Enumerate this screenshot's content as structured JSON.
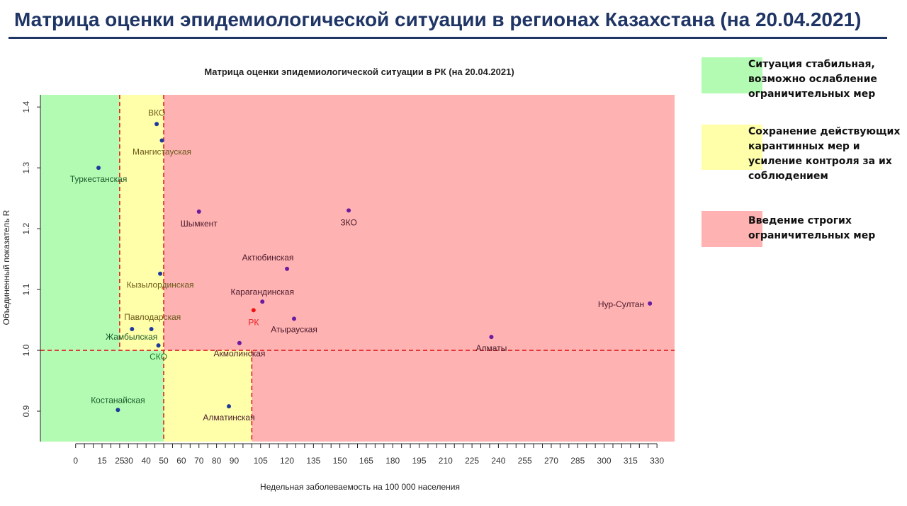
{
  "header": {
    "title": "Матрица оценки эпидемиологической ситуации в регионах Казахстана (на 20.04.2021)"
  },
  "legend": [
    {
      "text": "Ситуация стабильная, возможно ослабление ограничительных мер",
      "color": "#b3fbb3"
    },
    {
      "text": "Сохранение действующих карантинных мер и усиление контроля за их соблюдением",
      "color": "#ffffaa"
    },
    {
      "text": "Введение строгих ограничительных мер",
      "color": "#ffb2b2"
    }
  ],
  "chart_data": {
    "type": "scatter",
    "title": "Матрица оценки эпидемиологической ситуации в РК (на 20.04.2021)",
    "xlabel": "Недельная заболеваемость на 100 000 населения",
    "ylabel": "Объединенный показатель R",
    "xlim": [
      -20,
      340
    ],
    "ylim": [
      0.85,
      1.42
    ],
    "xticks": [
      0,
      15,
      25,
      30,
      40,
      50,
      60,
      70,
      80,
      90,
      105,
      120,
      135,
      150,
      165,
      180,
      195,
      210,
      225,
      240,
      255,
      270,
      285,
      300,
      315,
      330
    ],
    "yticks": [
      0.9,
      1.0,
      1.1,
      1.2,
      1.3,
      1.4
    ],
    "zones": [
      {
        "x": [
          -20,
          50
        ],
        "y": [
          1.0,
          1.42
        ],
        "color": "#b3fbb3"
      },
      {
        "x": [
          -20,
          50
        ],
        "y": [
          0.85,
          1.0
        ],
        "color": "#b3fbb3"
      },
      {
        "x": [
          25,
          50
        ],
        "y": [
          1.0,
          1.42
        ],
        "color": "#ffffaa"
      },
      {
        "x": [
          50,
          100
        ],
        "y": [
          0.85,
          1.0
        ],
        "color": "#ffffaa"
      },
      {
        "x": [
          50,
          340
        ],
        "y": [
          1.0,
          1.42
        ],
        "color": "#ffb2b2"
      },
      {
        "x": [
          100,
          340
        ],
        "y": [
          0.85,
          1.0
        ],
        "color": "#ffb2b2"
      }
    ],
    "thresholds": {
      "x": [
        25,
        50,
        100
      ],
      "y": 1.0,
      "color": "#dd2222"
    },
    "points": [
      {
        "label": "ВКО",
        "x": 46,
        "y": 1.372,
        "color": "#1f3a9b"
      },
      {
        "label": "Мангистауская",
        "x": 49,
        "y": 1.345,
        "color": "#1f3a9b"
      },
      {
        "label": "Туркестанская",
        "x": 13,
        "y": 1.3,
        "color": "#1f3a9b"
      },
      {
        "label": "Шымкент",
        "x": 70,
        "y": 1.228,
        "color": "#6a1ba0"
      },
      {
        "label": "ЗКО",
        "x": 155,
        "y": 1.23,
        "color": "#6a1ba0"
      },
      {
        "label": "Актюбинская",
        "x": 120,
        "y": 1.134,
        "color": "#6a1ba0"
      },
      {
        "label": "Кызылординская",
        "x": 48,
        "y": 1.126,
        "color": "#1f3a9b"
      },
      {
        "label": "Карагандинская",
        "x": 106,
        "y": 1.08,
        "color": "#6a1ba0"
      },
      {
        "label": "РК",
        "x": 101,
        "y": 1.066,
        "color": "#ee1111"
      },
      {
        "label": "Атырауская",
        "x": 124,
        "y": 1.052,
        "color": "#6a1ba0"
      },
      {
        "label": "Нур-Султан",
        "x": 326,
        "y": 1.077,
        "color": "#6a1ba0"
      },
      {
        "label": "Павлодарская",
        "x": 32,
        "y": 1.035,
        "color": "#1f3a9b"
      },
      {
        "label": "Жамбылская",
        "x": 43,
        "y": 1.035,
        "color": "#1f3a9b"
      },
      {
        "label": "Алматы",
        "x": 236,
        "y": 1.022,
        "color": "#6a1ba0"
      },
      {
        "label": "СКО",
        "x": 47,
        "y": 1.008,
        "color": "#1f3a9b"
      },
      {
        "label": "Акмолинская",
        "x": 93,
        "y": 1.012,
        "color": "#6a1ba0"
      },
      {
        "label": "Костанайская",
        "x": 24,
        "y": 0.902,
        "color": "#1f3a9b"
      },
      {
        "label": "Алматинская",
        "x": 87,
        "y": 0.908,
        "color": "#1f3a9b"
      }
    ]
  }
}
